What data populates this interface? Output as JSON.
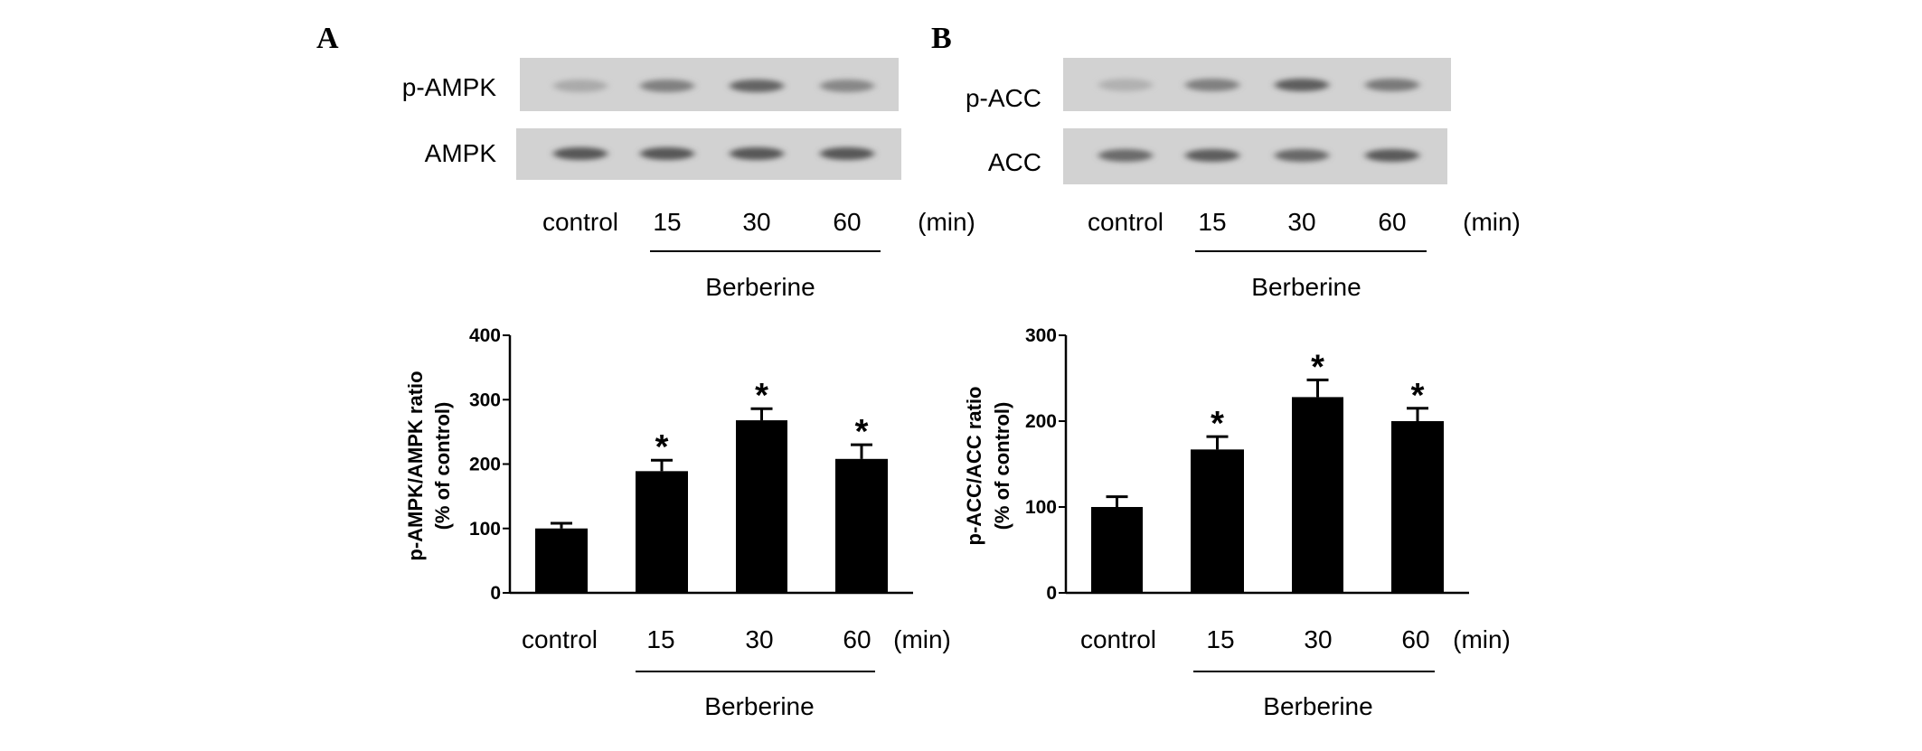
{
  "panels": [
    {
      "letter": "A",
      "blots": [
        {
          "label": "p-AMPK",
          "band_intensity": [
            0.25,
            0.55,
            0.75,
            0.5
          ]
        },
        {
          "label": "AMPK",
          "band_intensity": [
            0.85,
            0.85,
            0.85,
            0.85
          ]
        }
      ],
      "lane_labels": [
        "control",
        "15",
        "30",
        "60"
      ],
      "unit": "(min)",
      "treatment": "Berberine"
    },
    {
      "letter": "B",
      "blots": [
        {
          "label": "p-ACC",
          "band_intensity": [
            0.2,
            0.55,
            0.8,
            0.6
          ]
        },
        {
          "label": "ACC",
          "band_intensity": [
            0.7,
            0.8,
            0.72,
            0.82
          ]
        }
      ],
      "lane_labels": [
        "control",
        "15",
        "30",
        "60"
      ],
      "unit": "(min)",
      "treatment": "Berberine"
    }
  ],
  "chart_data": [
    {
      "type": "bar",
      "categories": [
        "control",
        "15",
        "30",
        "60"
      ],
      "values": [
        100,
        189,
        268,
        208
      ],
      "errors": [
        8,
        17,
        18,
        22
      ],
      "significance": [
        "",
        "*",
        "*",
        "*"
      ],
      "ylabel": "p-AMPK/AMPK ratio",
      "ylabel2": "(% of control)",
      "xlabel_unit": "(min)",
      "treatment": "Berberine",
      "ylim": [
        0,
        400
      ],
      "yticks": [
        "0",
        "100",
        "200",
        "300",
        "400"
      ],
      "color": "#000000"
    },
    {
      "type": "bar",
      "categories": [
        "control",
        "15",
        "30",
        "60"
      ],
      "values": [
        100,
        167,
        228,
        200
      ],
      "errors": [
        12,
        15,
        20,
        15
      ],
      "significance": [
        "",
        "*",
        "*",
        "*"
      ],
      "ylabel": "p-ACC/ACC ratio",
      "ylabel2": "(% of control)",
      "xlabel_unit": "(min)",
      "treatment": "Berberine",
      "ylim": [
        0,
        300
      ],
      "yticks": [
        "0",
        "100",
        "200",
        "300"
      ],
      "color": "#000000"
    }
  ]
}
